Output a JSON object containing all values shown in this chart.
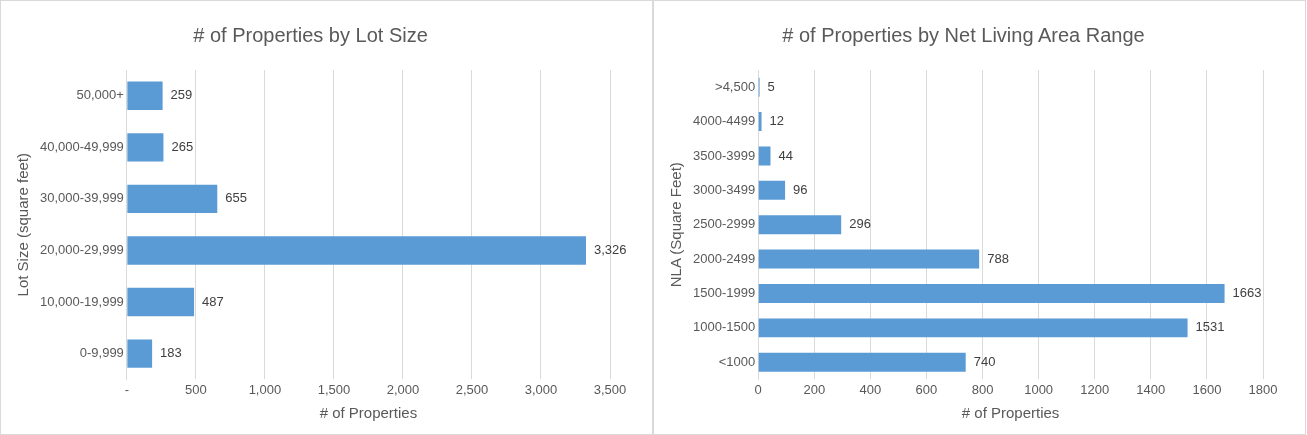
{
  "chart_data": [
    {
      "type": "bar",
      "orientation": "horizontal",
      "title": "# of Properties by Lot Size",
      "xlabel": "# of Properties",
      "ylabel": "Lot Size (square feet)",
      "categories": [
        "50,000+",
        "40,000-49,999",
        "30,000-39,999",
        "20,000-29,999",
        "10,000-19,999",
        "0-9,999"
      ],
      "values": [
        259,
        265,
        655,
        3326,
        487,
        183
      ],
      "value_labels": [
        "259",
        "265",
        "655",
        "3,326",
        "487",
        "183"
      ],
      "color": "#5b9bd5",
      "xlim": [
        0,
        3500
      ],
      "xticks": [
        {
          "value": 0,
          "label": "-"
        },
        500,
        {
          "value": 1000,
          "label": "1,000"
        },
        {
          "value": 1500,
          "label": "1,500"
        },
        {
          "value": 2000,
          "label": "2,000"
        },
        {
          "value": 2500,
          "label": "2,500"
        },
        {
          "value": 3000,
          "label": "3,000"
        },
        {
          "value": 3500,
          "label": "3,500"
        }
      ],
      "grid": "x",
      "legend": false
    },
    {
      "type": "bar",
      "orientation": "horizontal",
      "title": "# of Properties by Net Living Area Range",
      "xlabel": "# of Properties",
      "ylabel": "NLA (Square Feet)",
      "categories": [
        ">4,500",
        "4000-4499",
        "3500-3999",
        "3000-3499",
        "2500-2999",
        "2000-2499",
        "1500-1999",
        "1000-1500",
        "<1000"
      ],
      "values": [
        5,
        12,
        44,
        96,
        296,
        788,
        1663,
        1531,
        740
      ],
      "data_labels": true,
      "color": "#5b9bd5",
      "xlim": [
        0,
        1800
      ],
      "xticks": [
        0,
        200,
        400,
        600,
        800,
        1000,
        1200,
        1400,
        1600,
        1800
      ],
      "grid": "x",
      "legend": false
    }
  ]
}
